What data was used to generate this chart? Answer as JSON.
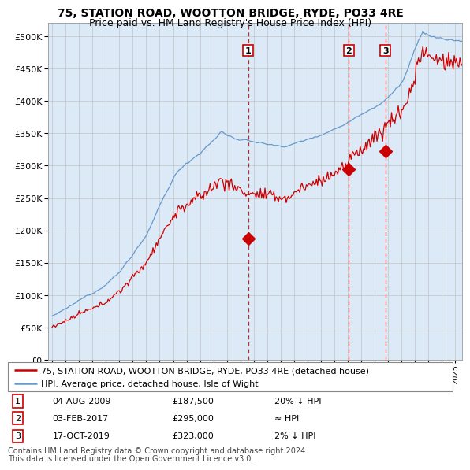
{
  "title": "75, STATION ROAD, WOOTTON BRIDGE, RYDE, PO33 4RE",
  "subtitle": "Price paid vs. HM Land Registry's House Price Index (HPI)",
  "legend_red": "75, STATION ROAD, WOOTTON BRIDGE, RYDE, PO33 4RE (detached house)",
  "legend_blue": "HPI: Average price, detached house, Isle of Wight",
  "footer1": "Contains HM Land Registry data © Crown copyright and database right 2024.",
  "footer2": "This data is licensed under the Open Government Licence v3.0.",
  "transactions": [
    {
      "id": 1,
      "date": "04-AUG-2009",
      "price": 187500,
      "hpi_note": "20% ↓ HPI",
      "x_year": 2009.58
    },
    {
      "id": 2,
      "date": "03-FEB-2017",
      "price": 295000,
      "hpi_note": "≈ HPI",
      "x_year": 2017.08
    },
    {
      "id": 3,
      "date": "17-OCT-2019",
      "price": 323000,
      "hpi_note": "2% ↓ HPI",
      "x_year": 2019.79
    }
  ],
  "ylim": [
    0,
    520000
  ],
  "yticks": [
    0,
    50000,
    100000,
    150000,
    200000,
    250000,
    300000,
    350000,
    400000,
    450000,
    500000
  ],
  "xlim_start": 1994.7,
  "xlim_end": 2025.5,
  "background_color": "#ffffff",
  "chart_bg_color": "#dce9f7",
  "grid_color": "#bbbbbb",
  "red_line_color": "#cc0000",
  "blue_line_color": "#6699cc",
  "dashed_line_color": "#cc0000",
  "title_fontsize": 10,
  "subtitle_fontsize": 9,
  "axis_fontsize": 8,
  "legend_fontsize": 8,
  "table_fontsize": 8,
  "footer_fontsize": 7
}
